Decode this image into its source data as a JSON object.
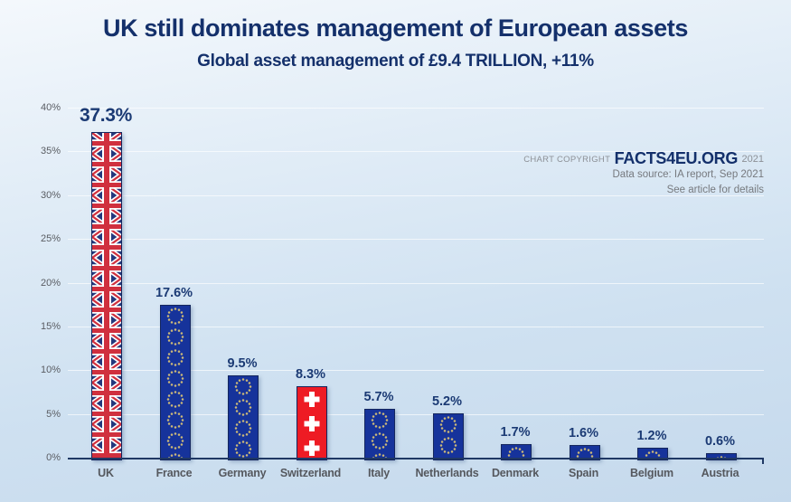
{
  "header": {
    "title": "UK still dominates management of European assets",
    "subtitle": "Global asset management of £9.4 TRILLION, +11%"
  },
  "copyright": {
    "prefix": "CHART COPYRIGHT",
    "brand": "FACTS4EU.ORG",
    "year": "2021",
    "source": "Data source: IA report, Sep 2021",
    "note": "See article for details"
  },
  "colors": {
    "title_navy": "#14306b",
    "value_label": "#1b3a74",
    "axis": "#1f3864",
    "tick_label": "#5a5d63",
    "eu_bar_blue": "#16339b",
    "eu_star_gold": "#cdb978",
    "uk_flag_blue": "#23377d",
    "uk_flag_red": "#d0303e",
    "swiss_red": "#ee1b24",
    "flag_white": "#ffffff"
  },
  "chart_data": {
    "type": "bar",
    "title": "UK still dominates management of European assets",
    "subtitle": "Global asset management of £9.4 TRILLION, +11%",
    "categories": [
      "UK",
      "France",
      "Germany",
      "Switzerland",
      "Italy",
      "Netherlands",
      "Denmark",
      "Spain",
      "Belgium",
      "Austria"
    ],
    "values": [
      37.3,
      17.6,
      9.5,
      8.3,
      5.7,
      5.2,
      1.7,
      1.6,
      1.2,
      0.6
    ],
    "value_labels": [
      "37.3%",
      "17.6%",
      "9.5%",
      "8.3%",
      "5.7%",
      "5.2%",
      "1.7%",
      "1.6%",
      "1.2%",
      "0.6%"
    ],
    "bar_flags": [
      "uk",
      "eu",
      "eu",
      "swiss",
      "eu",
      "eu",
      "eu",
      "eu",
      "eu",
      "eu"
    ],
    "xlabel": "",
    "ylabel": "",
    "ylim": [
      0,
      40
    ],
    "y_ticks": [
      "0%",
      "5%",
      "10%",
      "15%",
      "20%",
      "25%",
      "30%",
      "35%",
      "40%"
    ],
    "grid": true,
    "legend": false
  }
}
